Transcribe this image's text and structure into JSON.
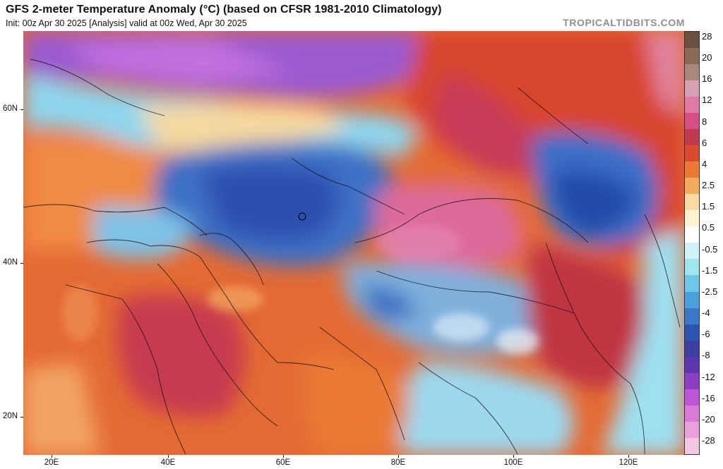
{
  "header": {
    "title": "GFS 2-meter Temperature Anomaly (°C) (based on CFSR 1981-2010 Climatology)",
    "subtitle": "Init: 00z Apr 30 2025   [Analysis]   valid at 00z Wed, Apr 30 2025",
    "brand": "TROPICALTIDBITS.COM"
  },
  "map": {
    "lat_labels": [
      "60N",
      "40N",
      "20N"
    ],
    "lon_labels": [
      "20E",
      "40E",
      "60E",
      "80E",
      "100E",
      "120E"
    ]
  },
  "colorbar": {
    "labels": [
      "28",
      "20",
      "16",
      "12",
      "8",
      "6",
      "4",
      "2.5",
      "1.5",
      "0.5",
      "-0.5",
      "-1.5",
      "-2.5",
      "-4",
      "-6",
      "-8",
      "-12",
      "-16",
      "-20",
      "-28"
    ],
    "colors": [
      "#6b5040",
      "#8a6a55",
      "#a9877a",
      "#d4a0b2",
      "#e079a6",
      "#d54f85",
      "#c23a4d",
      "#d94a2e",
      "#ea7a34",
      "#f3ab5e",
      "#fbdba3",
      "#fff4d0",
      "#ffffff",
      "#cff3f6",
      "#9fe6ee",
      "#6ec7e8",
      "#4aa0de",
      "#3b7acb",
      "#2f53b0",
      "#3a3fa0",
      "#5a37b0",
      "#8d3ec6",
      "#bd56d8",
      "#d97ad9",
      "#e9a0dc",
      "#f3c8e4"
    ]
  }
}
